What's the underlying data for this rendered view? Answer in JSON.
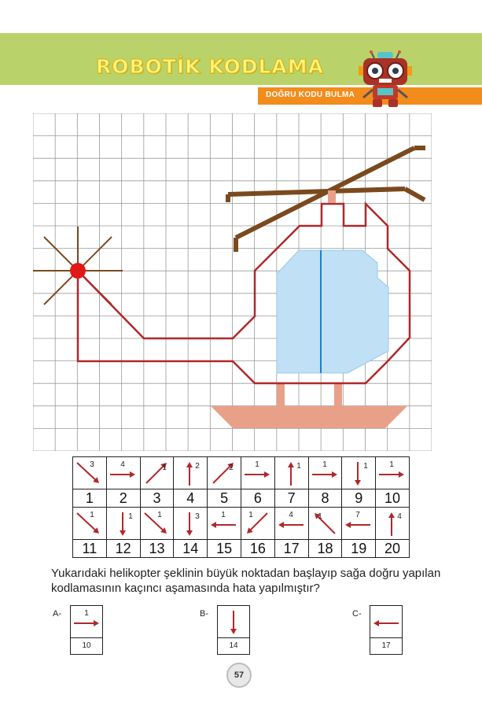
{
  "header": {
    "title": "ROBOTİK KODLAMA",
    "subtitle": "DOĞRU KODU BULMA"
  },
  "figure": {
    "grid_cols": 18,
    "grid_rows": 15
  },
  "code_table": {
    "row1": [
      {
        "step": "1",
        "dir": "down-right",
        "count": "3"
      },
      {
        "step": "2",
        "dir": "right",
        "count": "4"
      },
      {
        "step": "3",
        "dir": "up-right",
        "count": "1"
      },
      {
        "step": "4",
        "dir": "up",
        "count": "2"
      },
      {
        "step": "5",
        "dir": "up-right",
        "count": "2"
      },
      {
        "step": "6",
        "dir": "right",
        "count": "1"
      },
      {
        "step": "7",
        "dir": "up",
        "count": "1"
      },
      {
        "step": "8",
        "dir": "right",
        "count": "1"
      },
      {
        "step": "9",
        "dir": "down",
        "count": "1"
      },
      {
        "step": "10",
        "dir": "right",
        "count": "1"
      }
    ],
    "row2": [
      {
        "step": "11",
        "dir": "down-right",
        "count": "1"
      },
      {
        "step": "12",
        "dir": "down",
        "count": "1"
      },
      {
        "step": "13",
        "dir": "down-right",
        "count": "1"
      },
      {
        "step": "14",
        "dir": "down",
        "count": "3"
      },
      {
        "step": "15",
        "dir": "left",
        "count": "1"
      },
      {
        "step": "16",
        "dir": "down-left",
        "count": "1"
      },
      {
        "step": "17",
        "dir": "left",
        "count": "4"
      },
      {
        "step": "18",
        "dir": "up-left",
        "count": "1"
      },
      {
        "step": "19",
        "dir": "left",
        "count": "7"
      },
      {
        "step": "20",
        "dir": "up",
        "count": "4"
      }
    ]
  },
  "question": "Yukarıdaki helikopter şeklinin büyük noktadan başlayıp sağa doğru yapılan kodlamasının kaçıncı aşamasında hata yapılmıştır?",
  "options": [
    {
      "label": "A-",
      "dir": "right",
      "count": "1",
      "step": "10"
    },
    {
      "label": "B-",
      "dir": "down",
      "count": "",
      "step": "14"
    },
    {
      "label": "C-",
      "dir": "left",
      "count": "",
      "step": "17"
    }
  ],
  "page_number": "57",
  "colors": {
    "arrow": "#b0282a",
    "outline": "#b0282a",
    "window": "#bfe0f5",
    "rotor": "#7a4a1e",
    "skid": "#e8a088",
    "header_green": "#b9d36a",
    "header_orange": "#f28c1c"
  }
}
